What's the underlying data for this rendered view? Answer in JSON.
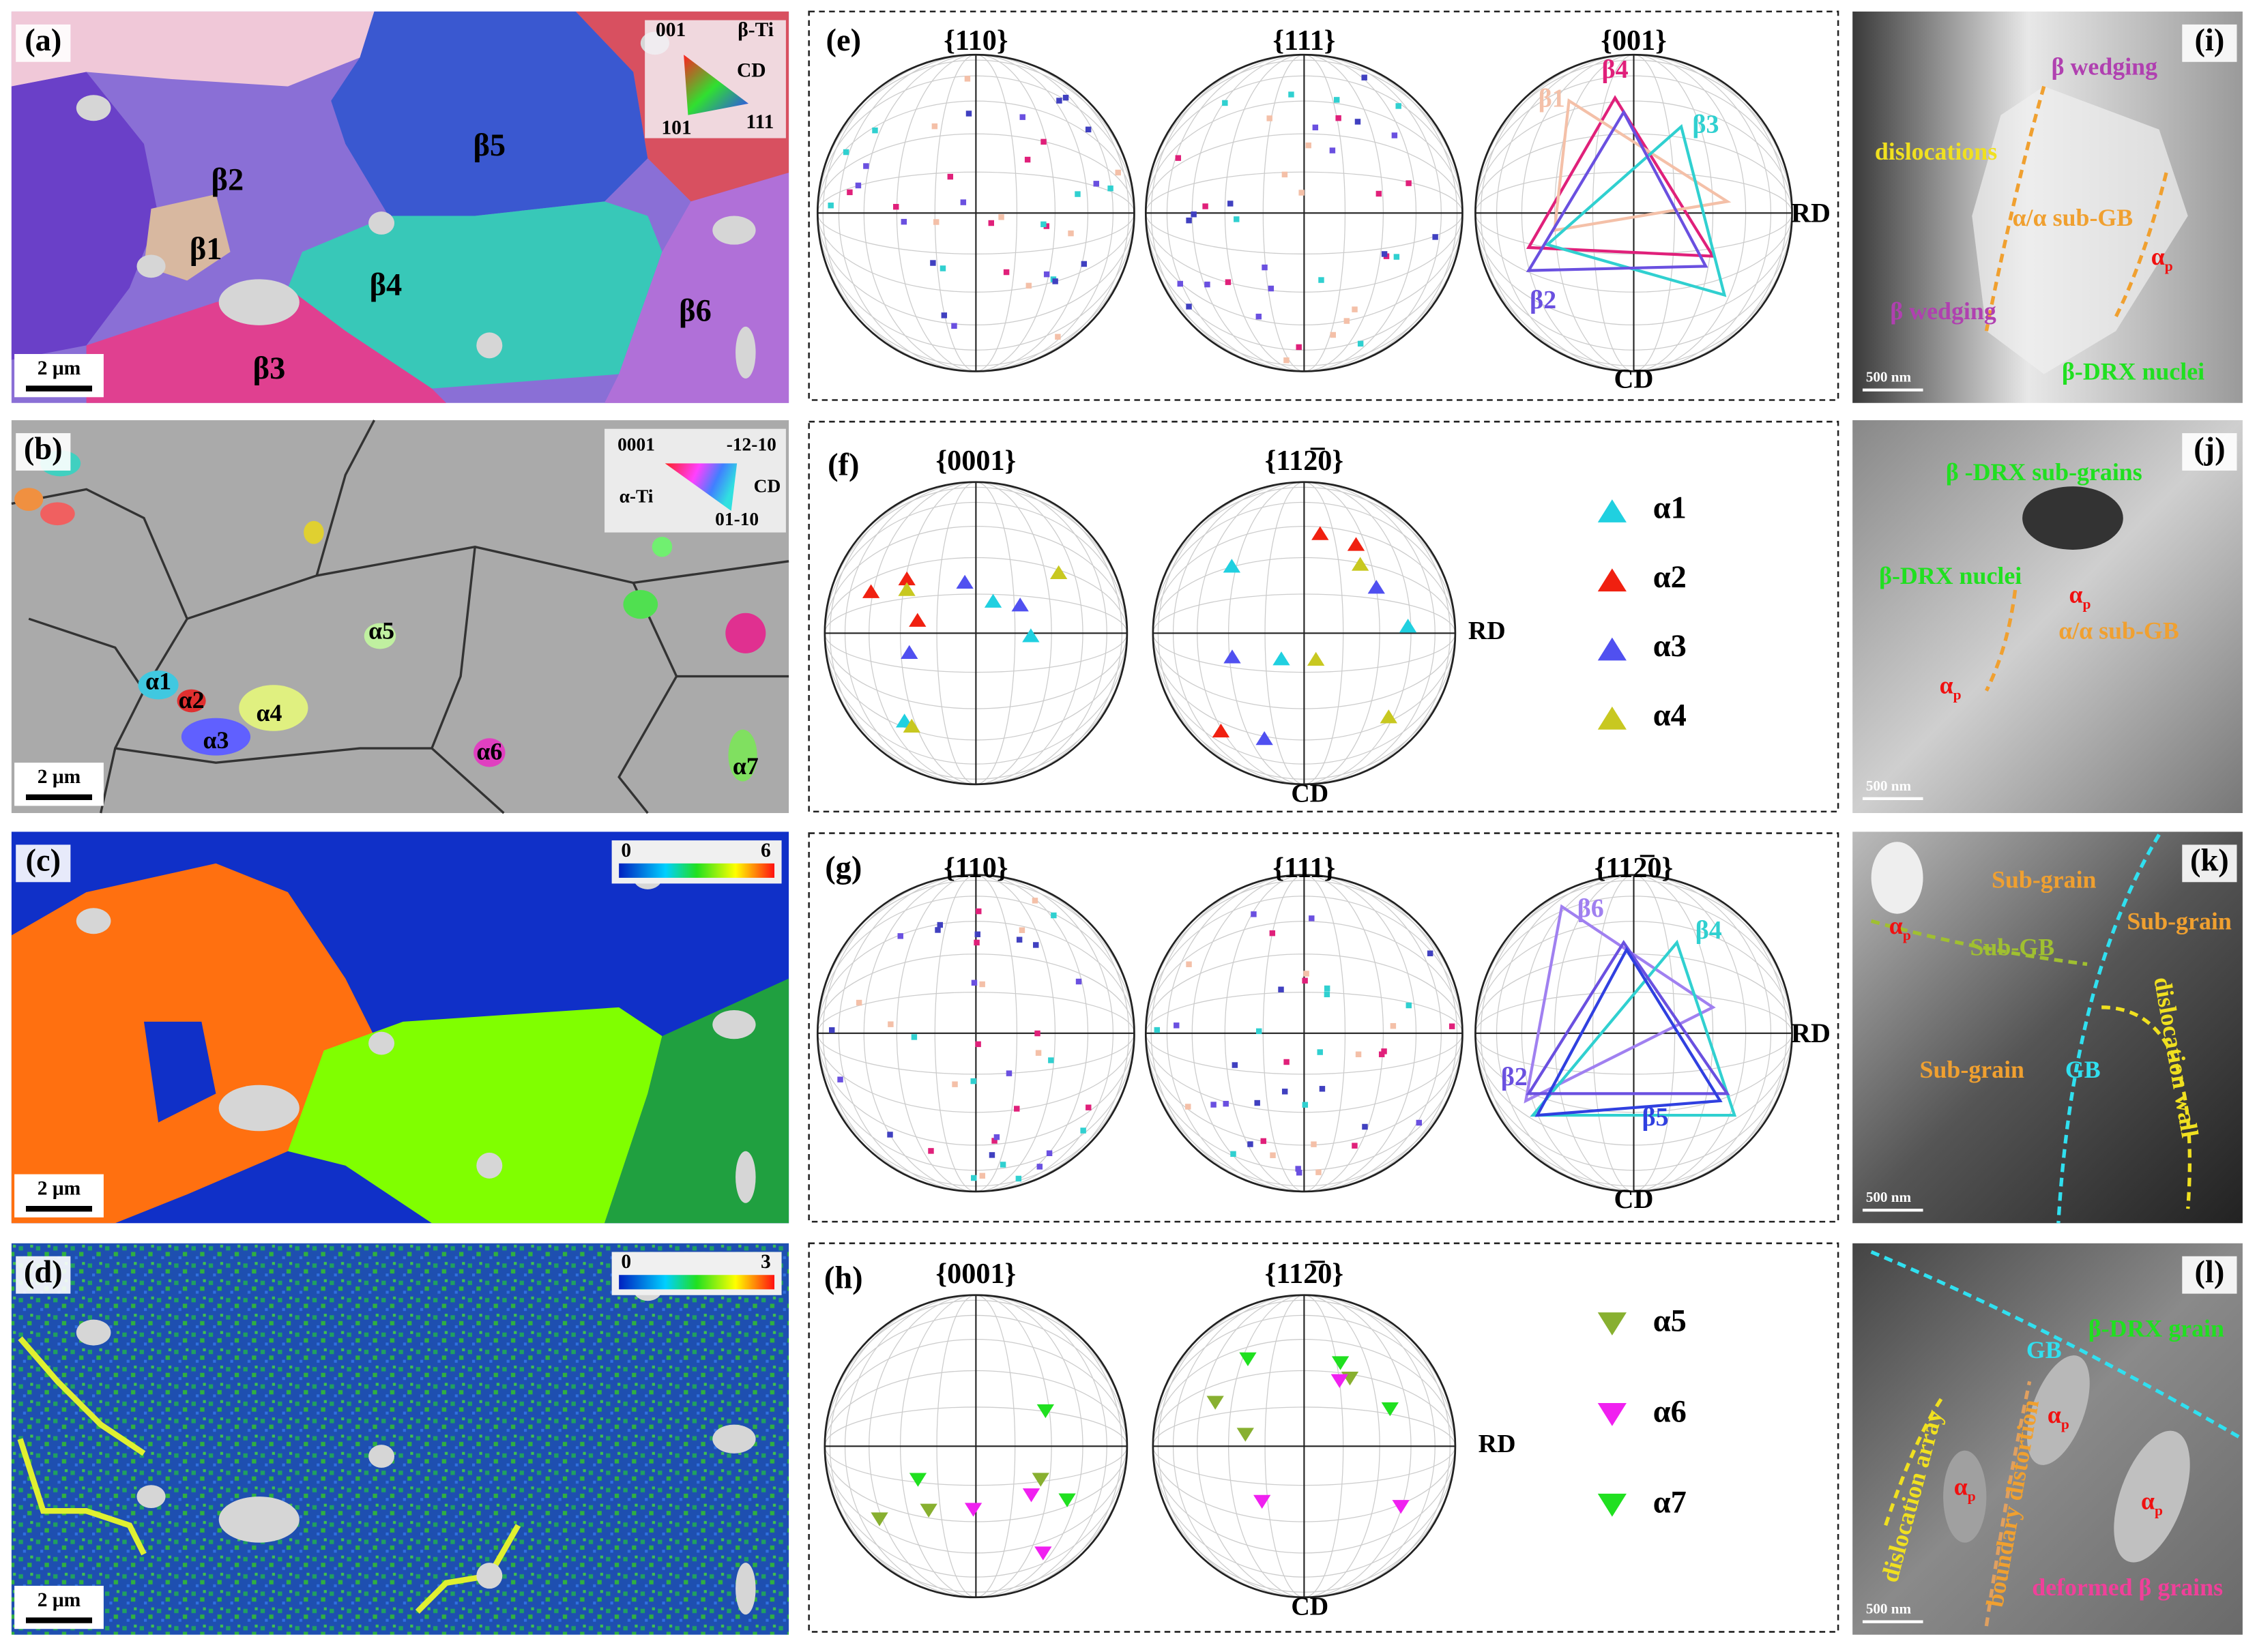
{
  "panel_a": {
    "label": "(a)",
    "grains": [
      "β1",
      "β2",
      "β3",
      "β4",
      "β5",
      "β6"
    ],
    "legend": {
      "corners": [
        "001",
        "101",
        "111"
      ],
      "phase": "β-Ti",
      "direction": "CD"
    },
    "scale_bar": "2 μm"
  },
  "panel_b": {
    "label": "(b)",
    "grains": [
      "α1",
      "α2",
      "α3",
      "α4",
      "α5",
      "α6",
      "α7"
    ],
    "legend": {
      "corners": [
        "0001",
        "-12-10",
        "01-10"
      ],
      "phase": "α-Ti",
      "direction": "CD"
    },
    "scale_bar": "2 μm"
  },
  "panel_c": {
    "label": "(c)",
    "colorbar": [
      0,
      6
    ],
    "scale_bar": "2 μm"
  },
  "panel_d": {
    "label": "(d)",
    "colorbar": [
      0,
      3
    ],
    "scale_bar": "2 μm"
  },
  "panel_e": {
    "label": "(e)",
    "pole_figures": [
      "{110}",
      "{111}",
      "{001}"
    ],
    "axes": [
      "RD",
      "CD"
    ],
    "variants": [
      "β4",
      "β1",
      "β3",
      "β2"
    ]
  },
  "panel_f": {
    "label": "(f)",
    "pole_figures": [
      "{0001}",
      "{112̅0}"
    ],
    "axes": [
      "RD",
      "CD"
    ],
    "legend": [
      "α1",
      "α2",
      "α3",
      "α4"
    ]
  },
  "panel_g": {
    "label": "(g)",
    "pole_figures": [
      "{110}",
      "{111}",
      "{112̅0}"
    ],
    "axes": [
      "RD",
      "CD"
    ],
    "variants": [
      "β6",
      "β4",
      "β2",
      "β5"
    ]
  },
  "panel_h": {
    "label": "(h)",
    "pole_figures": [
      "{0001}",
      "{112̅0}"
    ],
    "axes": [
      "RD",
      "CD"
    ],
    "legend": [
      "α5",
      "α6",
      "α7"
    ]
  },
  "panel_i": {
    "label": "(i)",
    "annotations": [
      {
        "text": "β wedging"
      },
      {
        "text": "dislocations"
      },
      {
        "text": "α/α sub-GB"
      },
      {
        "text": "α",
        "sub": "p"
      },
      {
        "text": "β wedging"
      },
      {
        "text": "β-DRX nuclei"
      }
    ],
    "scale_bar": "500 nm"
  },
  "panel_j": {
    "label": "(j)",
    "annotations": [
      {
        "text": "β -DRX sub-grains"
      },
      {
        "text": "β-DRX nuclei"
      },
      {
        "text": "α",
        "sub": "p"
      },
      {
        "text": "α/α sub-GB"
      },
      {
        "text": "α",
        "sub": "p"
      }
    ],
    "scale_bar": "500 nm"
  },
  "panel_k": {
    "label": "(k)",
    "annotations": [
      {
        "text": "α",
        "sub": "p"
      },
      {
        "text": "Sub-grain"
      },
      {
        "text": "Sub-grain"
      },
      {
        "text": "Sub-GB"
      },
      {
        "text": "Sub-grain"
      },
      {
        "text": "GB"
      },
      {
        "text": "dislocation wall"
      }
    ],
    "scale_bar": "500 nm"
  },
  "panel_l": {
    "label": "(l)",
    "annotations": [
      {
        "text": "GB"
      },
      {
        "text": "β-DRX grain"
      },
      {
        "text": "α",
        "sub": "p"
      },
      {
        "text": "α",
        "sub": "p"
      },
      {
        "text": "α",
        "sub": "p"
      },
      {
        "text": "dislocation array"
      },
      {
        "text": "boundary distortion"
      },
      {
        "text": "deformed β grains"
      }
    ],
    "scale_bar": "500 nm"
  }
}
